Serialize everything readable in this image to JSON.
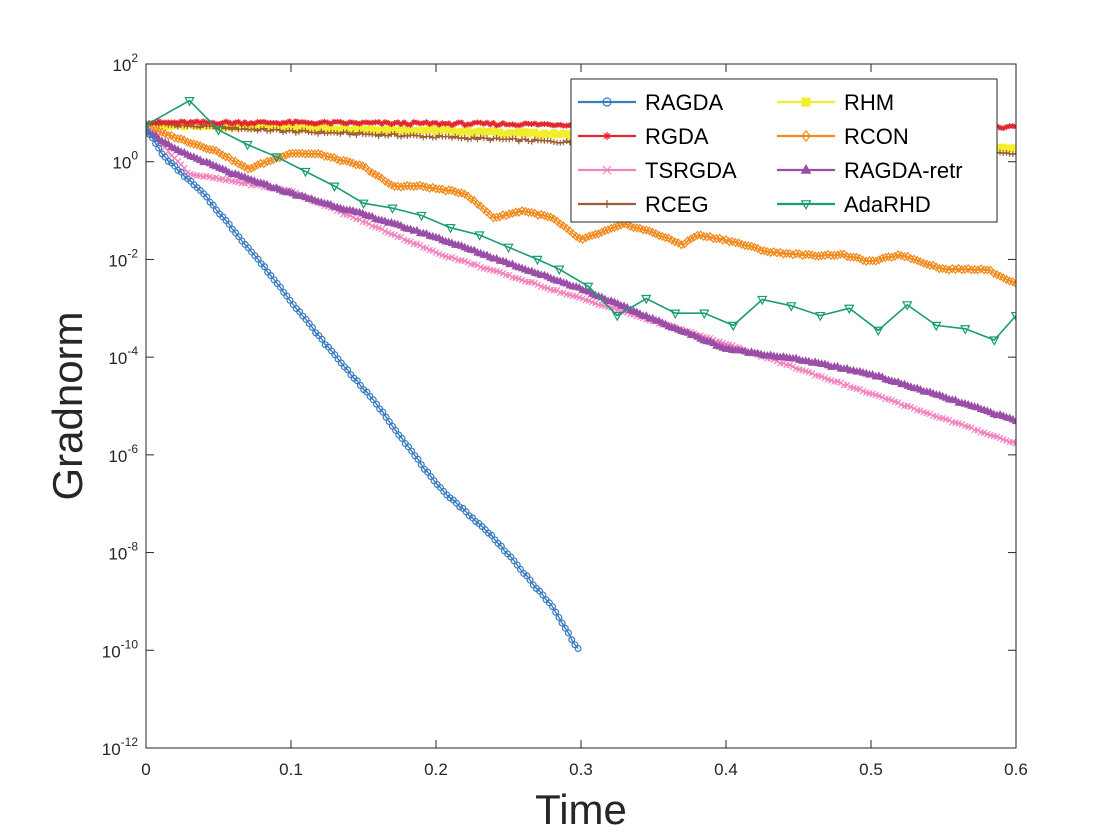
{
  "chart_data": {
    "type": "line",
    "title": "",
    "xlabel": "Time",
    "ylabel": "Gradnorm",
    "yscale": "log",
    "xlim": [
      0,
      0.6
    ],
    "ylim_exp": [
      -12,
      2
    ],
    "xticks": [
      "0",
      "0.1",
      "0.2",
      "0.3",
      "0.4",
      "0.5",
      "0.6"
    ],
    "ytick_base": "10",
    "ytick_exponents": [
      "-12",
      "-10",
      "-8",
      "-6",
      "-4",
      "-2",
      "0",
      "2"
    ],
    "legend_position": "top-right",
    "series": [
      {
        "name": "RAGDA",
        "color": "#3a7cc0",
        "marker": "circle",
        "dense": true,
        "log10_points": [
          [
            0.0,
            0.68
          ],
          [
            0.012,
            0.12
          ],
          [
            0.04,
            -0.67
          ],
          [
            0.08,
            -2.1
          ],
          [
            0.12,
            -3.6
          ],
          [
            0.16,
            -5.0
          ],
          [
            0.2,
            -6.6
          ],
          [
            0.24,
            -7.7
          ],
          [
            0.28,
            -9.1
          ],
          [
            0.298,
            -9.98
          ]
        ]
      },
      {
        "name": "RGDA",
        "color": "#e0262e",
        "marker": "star",
        "dense": true,
        "log10_points": [
          [
            0.0,
            0.8
          ],
          [
            0.1,
            0.8
          ],
          [
            0.2,
            0.78
          ],
          [
            0.3,
            0.76
          ],
          [
            0.4,
            0.74
          ],
          [
            0.5,
            0.72
          ],
          [
            0.6,
            0.7
          ]
        ]
      },
      {
        "name": "TSRGDA",
        "color": "#f383be",
        "marker": "x",
        "dense": true,
        "log10_points": [
          [
            0.0,
            0.7
          ],
          [
            0.03,
            -0.25
          ],
          [
            0.1,
            -0.6
          ],
          [
            0.2,
            -1.86
          ],
          [
            0.3,
            -2.8
          ],
          [
            0.4,
            -3.73
          ],
          [
            0.5,
            -4.75
          ],
          [
            0.6,
            -5.77
          ]
        ]
      },
      {
        "name": "RCEG",
        "color": "#9e5d36",
        "marker": "plus",
        "dense": true,
        "log10_points": [
          [
            0.0,
            0.78
          ],
          [
            0.1,
            0.62
          ],
          [
            0.2,
            0.51
          ],
          [
            0.3,
            0.39
          ],
          [
            0.4,
            0.32
          ],
          [
            0.5,
            0.24
          ],
          [
            0.6,
            0.18
          ]
        ]
      },
      {
        "name": "RHM",
        "color": "#f2ee2e",
        "marker": "square",
        "dense": true,
        "log10_points": [
          [
            0.0,
            0.75
          ],
          [
            0.1,
            0.7
          ],
          [
            0.2,
            0.64
          ],
          [
            0.3,
            0.55
          ],
          [
            0.4,
            0.47
          ],
          [
            0.5,
            0.38
          ],
          [
            0.6,
            0.28
          ]
        ]
      },
      {
        "name": "RCON",
        "color": "#f08a1c",
        "marker": "diamond",
        "dense": true,
        "log10_points": [
          [
            0.0,
            0.7
          ],
          [
            0.03,
            0.4
          ],
          [
            0.05,
            0.2
          ],
          [
            0.07,
            -0.15
          ],
          [
            0.1,
            0.18
          ],
          [
            0.12,
            0.15
          ],
          [
            0.15,
            -0.1
          ],
          [
            0.17,
            -0.5
          ],
          [
            0.19,
            -0.5
          ],
          [
            0.22,
            -0.65
          ],
          [
            0.24,
            -1.15
          ],
          [
            0.26,
            -1.0
          ],
          [
            0.28,
            -1.15
          ],
          [
            0.3,
            -1.6
          ],
          [
            0.33,
            -1.28
          ],
          [
            0.35,
            -1.45
          ],
          [
            0.37,
            -1.7
          ],
          [
            0.38,
            -1.5
          ],
          [
            0.4,
            -1.6
          ],
          [
            0.43,
            -1.85
          ],
          [
            0.46,
            -1.92
          ],
          [
            0.48,
            -1.9
          ],
          [
            0.5,
            -2.05
          ],
          [
            0.52,
            -1.9
          ],
          [
            0.55,
            -2.2
          ],
          [
            0.57,
            -2.2
          ],
          [
            0.58,
            -2.2
          ],
          [
            0.6,
            -2.5
          ]
        ]
      },
      {
        "name": "RAGDA-retr",
        "color": "#9a4ea8",
        "marker": "triangle",
        "dense": true,
        "log10_points": [
          [
            0.0,
            0.65
          ],
          [
            0.02,
            0.25
          ],
          [
            0.06,
            -0.25
          ],
          [
            0.1,
            -0.65
          ],
          [
            0.15,
            -1.08
          ],
          [
            0.2,
            -1.55
          ],
          [
            0.25,
            -2.08
          ],
          [
            0.3,
            -2.6
          ],
          [
            0.35,
            -3.23
          ],
          [
            0.4,
            -3.83
          ],
          [
            0.45,
            -4.05
          ],
          [
            0.5,
            -4.35
          ],
          [
            0.55,
            -4.82
          ],
          [
            0.6,
            -5.3
          ]
        ]
      },
      {
        "name": "AdaRHD",
        "color": "#199c72",
        "marker": "triangle-down",
        "dense": false,
        "log10_points": [
          [
            0.0,
            0.75
          ],
          [
            0.03,
            1.25
          ],
          [
            0.05,
            0.65
          ],
          [
            0.07,
            0.35
          ],
          [
            0.09,
            0.1
          ],
          [
            0.11,
            -0.2
          ],
          [
            0.13,
            -0.5
          ],
          [
            0.15,
            -0.85
          ],
          [
            0.17,
            -0.95
          ],
          [
            0.19,
            -1.1
          ],
          [
            0.21,
            -1.35
          ],
          [
            0.23,
            -1.5
          ],
          [
            0.25,
            -1.75
          ],
          [
            0.27,
            -2.0
          ],
          [
            0.285,
            -2.2
          ],
          [
            0.305,
            -2.55
          ],
          [
            0.325,
            -3.15
          ],
          [
            0.345,
            -2.8
          ],
          [
            0.365,
            -3.1
          ],
          [
            0.385,
            -3.1
          ],
          [
            0.405,
            -3.35
          ],
          [
            0.425,
            -2.82
          ],
          [
            0.445,
            -2.95
          ],
          [
            0.465,
            -3.15
          ],
          [
            0.485,
            -3.0
          ],
          [
            0.505,
            -3.45
          ],
          [
            0.525,
            -2.93
          ],
          [
            0.545,
            -3.35
          ],
          [
            0.565,
            -3.42
          ],
          [
            0.585,
            -3.65
          ],
          [
            0.6,
            -3.15
          ]
        ]
      }
    ]
  }
}
